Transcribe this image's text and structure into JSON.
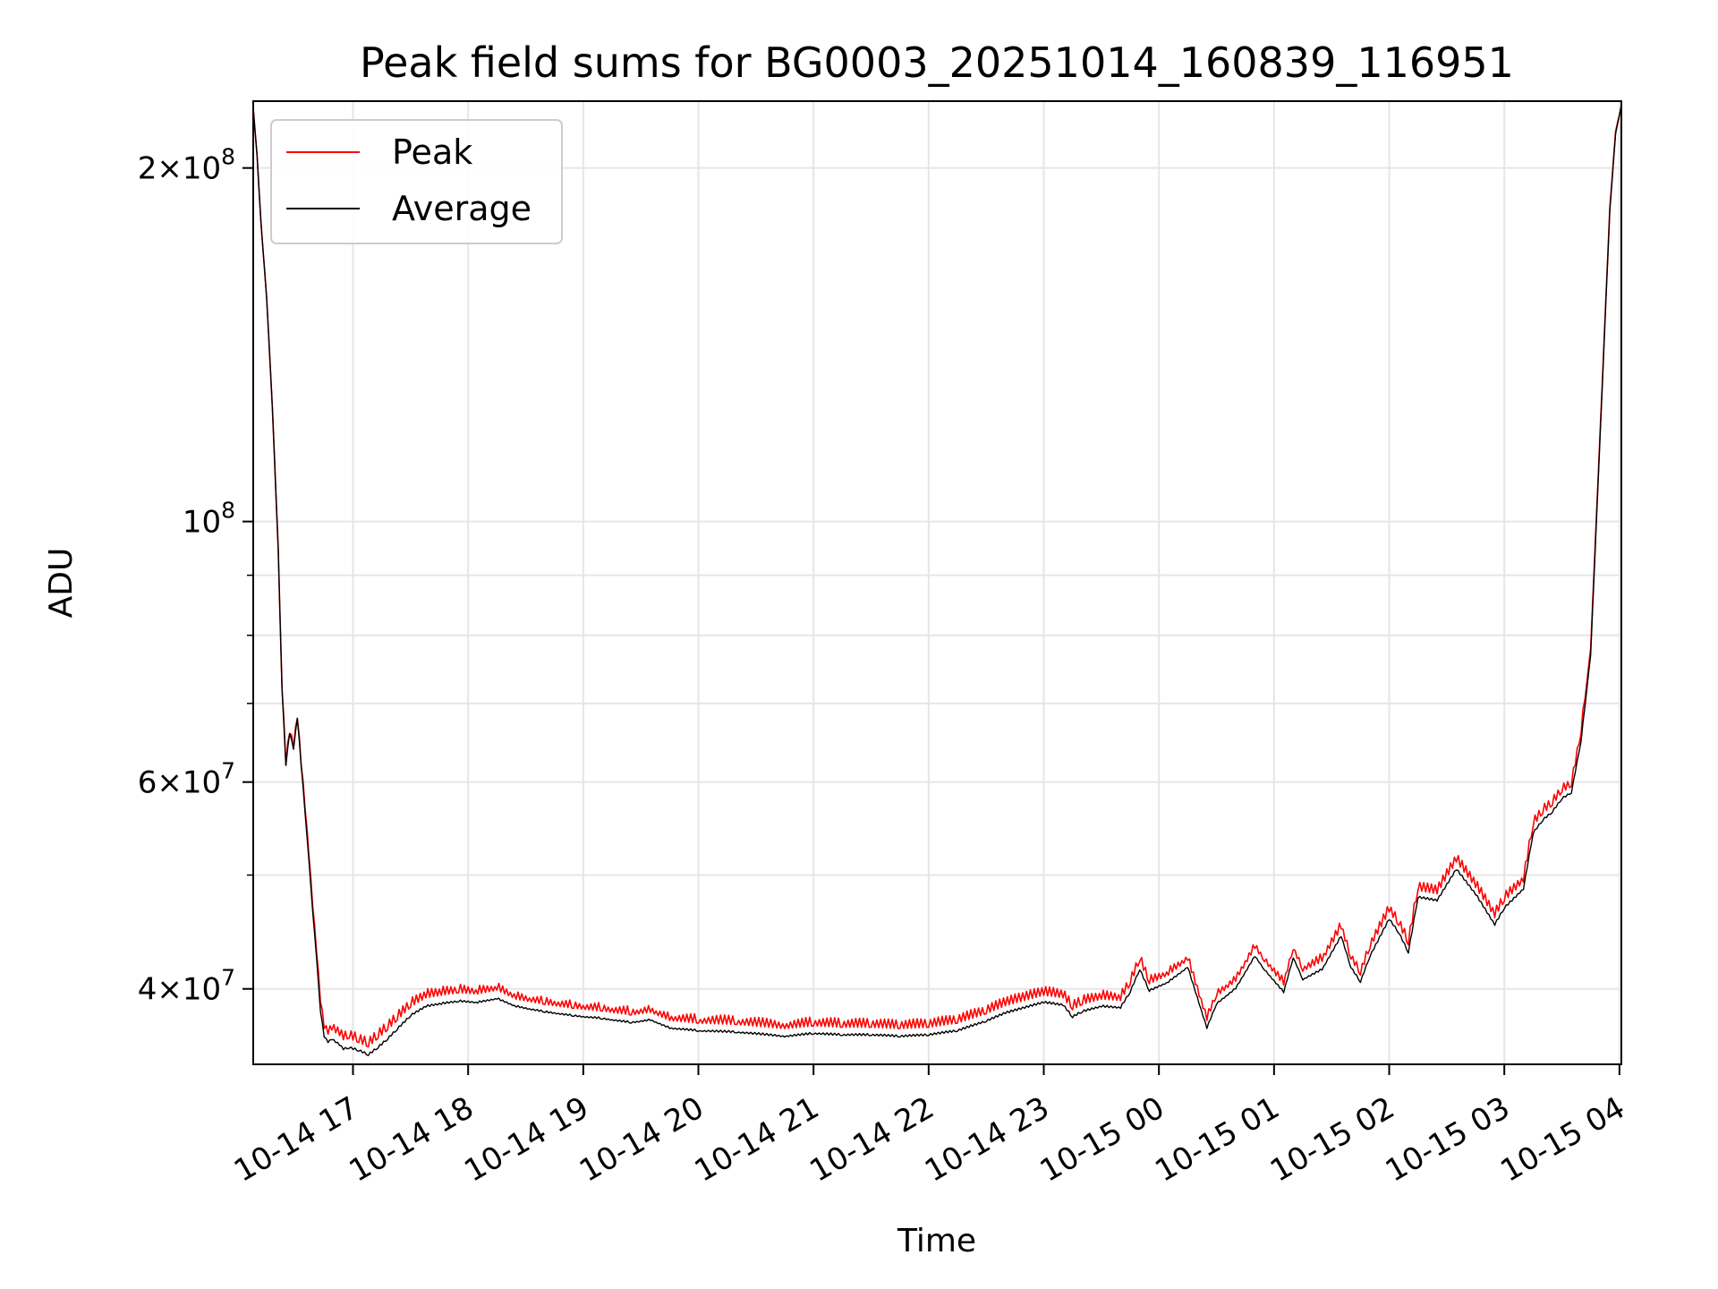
{
  "chart_data": {
    "type": "line",
    "title": "Peak field sums for BG0003_20251014_160839_116951",
    "xlabel": "Time",
    "ylabel": "ADU",
    "y_scale": "log",
    "xlim": [
      "2025-10-14 16:08",
      "2025-10-15 04:01"
    ],
    "ylim": [
      34500000,
      228000000
    ],
    "grid": true,
    "legend_position": "top-left",
    "x_tick_labels": [
      "10-14 17",
      "10-14 18",
      "10-14 19",
      "10-14 20",
      "10-14 21",
      "10-14 22",
      "10-14 23",
      "10-15 00",
      "10-15 01",
      "10-15 02",
      "10-15 03",
      "10-15 04"
    ],
    "x_tick_times": [
      "2025-10-14 17:00",
      "2025-10-14 18:00",
      "2025-10-14 19:00",
      "2025-10-14 20:00",
      "2025-10-14 21:00",
      "2025-10-14 22:00",
      "2025-10-14 23:00",
      "2025-10-15 00:00",
      "2025-10-15 01:00",
      "2025-10-15 02:00",
      "2025-10-15 03:00",
      "2025-10-15 04:00"
    ],
    "y_major_ticks": [
      {
        "value": 40000000,
        "mantissa": "4",
        "exponent": "7"
      },
      {
        "value": 60000000,
        "mantissa": "6",
        "exponent": "7"
      },
      {
        "value": 100000000,
        "mantissa": "",
        "exponent": "8"
      },
      {
        "value": 200000000,
        "mantissa": "2",
        "exponent": "8"
      }
    ],
    "y_minor_ticks": [
      50000000,
      70000000,
      80000000,
      90000000
    ],
    "times": [
      "2025-10-14 16:08",
      "2025-10-14 16:10",
      "2025-10-14 16:12",
      "2025-10-14 16:15",
      "2025-10-14 16:18",
      "2025-10-14 16:21",
      "2025-10-14 16:23",
      "2025-10-14 16:25",
      "2025-10-14 16:27",
      "2025-10-14 16:29",
      "2025-10-14 16:31",
      "2025-10-14 16:33",
      "2025-10-14 16:35",
      "2025-10-14 16:37",
      "2025-10-14 16:39",
      "2025-10-14 16:41",
      "2025-10-14 16:43",
      "2025-10-14 16:45",
      "2025-10-14 16:47",
      "2025-10-14 16:49",
      "2025-10-14 16:51",
      "2025-10-14 16:53",
      "2025-10-14 16:55",
      "2025-10-14 16:58",
      "2025-10-14 17:03",
      "2025-10-14 17:08",
      "2025-10-14 17:13",
      "2025-10-14 17:18",
      "2025-10-14 17:23",
      "2025-10-14 17:30",
      "2025-10-14 17:38",
      "2025-10-14 17:46",
      "2025-10-14 17:55",
      "2025-10-14 18:05",
      "2025-10-14 18:15",
      "2025-10-14 18:25",
      "2025-10-14 18:40",
      "2025-10-14 18:55",
      "2025-10-14 19:10",
      "2025-10-14 19:25",
      "2025-10-14 19:35",
      "2025-10-14 19:45",
      "2025-10-14 20:00",
      "2025-10-14 20:20",
      "2025-10-14 20:45",
      "2025-10-14 21:00",
      "2025-10-14 21:15",
      "2025-10-14 21:30",
      "2025-10-14 21:45",
      "2025-10-14 22:00",
      "2025-10-14 22:15",
      "2025-10-14 22:30",
      "2025-10-14 22:40",
      "2025-10-14 22:50",
      "2025-10-14 23:00",
      "2025-10-14 23:10",
      "2025-10-14 23:15",
      "2025-10-14 23:20",
      "2025-10-14 23:30",
      "2025-10-14 23:40",
      "2025-10-14 23:45",
      "2025-10-14 23:50",
      "2025-10-14 23:55",
      "2025-10-15 00:05",
      "2025-10-15 00:15",
      "2025-10-15 00:25",
      "2025-10-15 00:30",
      "2025-10-15 00:40",
      "2025-10-15 00:50",
      "2025-10-15 00:55",
      "2025-10-15 01:05",
      "2025-10-15 01:10",
      "2025-10-15 01:15",
      "2025-10-15 01:25",
      "2025-10-15 01:35",
      "2025-10-15 01:40",
      "2025-10-15 01:45",
      "2025-10-15 01:50",
      "2025-10-15 02:00",
      "2025-10-15 02:05",
      "2025-10-15 02:10",
      "2025-10-15 02:15",
      "2025-10-15 02:25",
      "2025-10-15 02:35",
      "2025-10-15 02:45",
      "2025-10-15 02:55",
      "2025-10-15 03:00",
      "2025-10-15 03:10",
      "2025-10-15 03:15",
      "2025-10-15 03:20",
      "2025-10-15 03:25",
      "2025-10-15 03:30",
      "2025-10-15 03:35",
      "2025-10-15 03:40",
      "2025-10-15 03:45",
      "2025-10-15 03:50",
      "2025-10-15 03:55",
      "2025-10-15 03:58",
      "2025-10-15 04:01"
    ],
    "series": [
      {
        "name": "Peak",
        "color": "#ff0000",
        "noise": 0.018,
        "values": [
          225000000,
          205000000,
          180000000,
          155000000,
          125000000,
          95000000,
          72000000,
          62000000,
          66000000,
          64000000,
          68000000,
          62000000,
          57000000,
          52000000,
          47000000,
          43000000,
          39000000,
          37000000,
          36600000,
          36900000,
          36700000,
          36500000,
          36200000,
          36300000,
          36000000,
          35700000,
          36300000,
          36900000,
          37600000,
          38600000,
          39300000,
          39500000,
          39700000,
          39600000,
          39900000,
          39200000,
          38800000,
          38500000,
          38300000,
          38000000,
          38200000,
          37600000,
          37400000,
          37300000,
          37000000,
          37200000,
          37100000,
          37100000,
          37000000,
          37100000,
          37400000,
          38100000,
          38700000,
          39100000,
          39500000,
          39300000,
          38400000,
          38800000,
          39200000,
          39100000,
          40300000,
          42200000,
          40400000,
          41100000,
          42300000,
          37600000,
          39400000,
          40600000,
          43300000,
          42200000,
          40300000,
          43200000,
          41400000,
          42200000,
          45000000,
          42400000,
          41100000,
          43300000,
          46500000,
          45300000,
          43600000,
          48500000,
          48200000,
          51300000,
          48800000,
          46000000,
          47500000,
          49300000,
          55000000,
          56400000,
          57300000,
          58800000,
          59500000,
          66000000,
          78000000,
          120000000,
          185000000,
          215000000,
          226000000
        ]
      },
      {
        "name": "Average",
        "color": "#000000",
        "noise": 0.004,
        "values": [
          225000000,
          205000000,
          180000000,
          155000000,
          125000000,
          95000000,
          72000000,
          62000000,
          66000000,
          64000000,
          68000000,
          62000000,
          56500000,
          51500000,
          46500000,
          42500000,
          38300000,
          36400000,
          36000000,
          36200000,
          36000000,
          35800000,
          35500000,
          35600000,
          35400000,
          35100000,
          35600000,
          36200000,
          36900000,
          37900000,
          38600000,
          38800000,
          39000000,
          38900000,
          39200000,
          38600000,
          38200000,
          37900000,
          37700000,
          37400000,
          37600000,
          37000000,
          36800000,
          36700000,
          36400000,
          36600000,
          36500000,
          36500000,
          36400000,
          36500000,
          36800000,
          37500000,
          38100000,
          38500000,
          38900000,
          38700000,
          37800000,
          38200000,
          38600000,
          38500000,
          39700000,
          41500000,
          39800000,
          40500000,
          41700000,
          37000000,
          38800000,
          40000000,
          42600000,
          41500000,
          39700000,
          42500000,
          40700000,
          41500000,
          44300000,
          41700000,
          40500000,
          42600000,
          45800000,
          44600000,
          42900000,
          47800000,
          47500000,
          50500000,
          48100000,
          45300000,
          46800000,
          48600000,
          54200000,
          55600000,
          56500000,
          58000000,
          58700000,
          65000000,
          77000000,
          119000000,
          184000000,
          214000000,
          226000000
        ]
      }
    ]
  }
}
